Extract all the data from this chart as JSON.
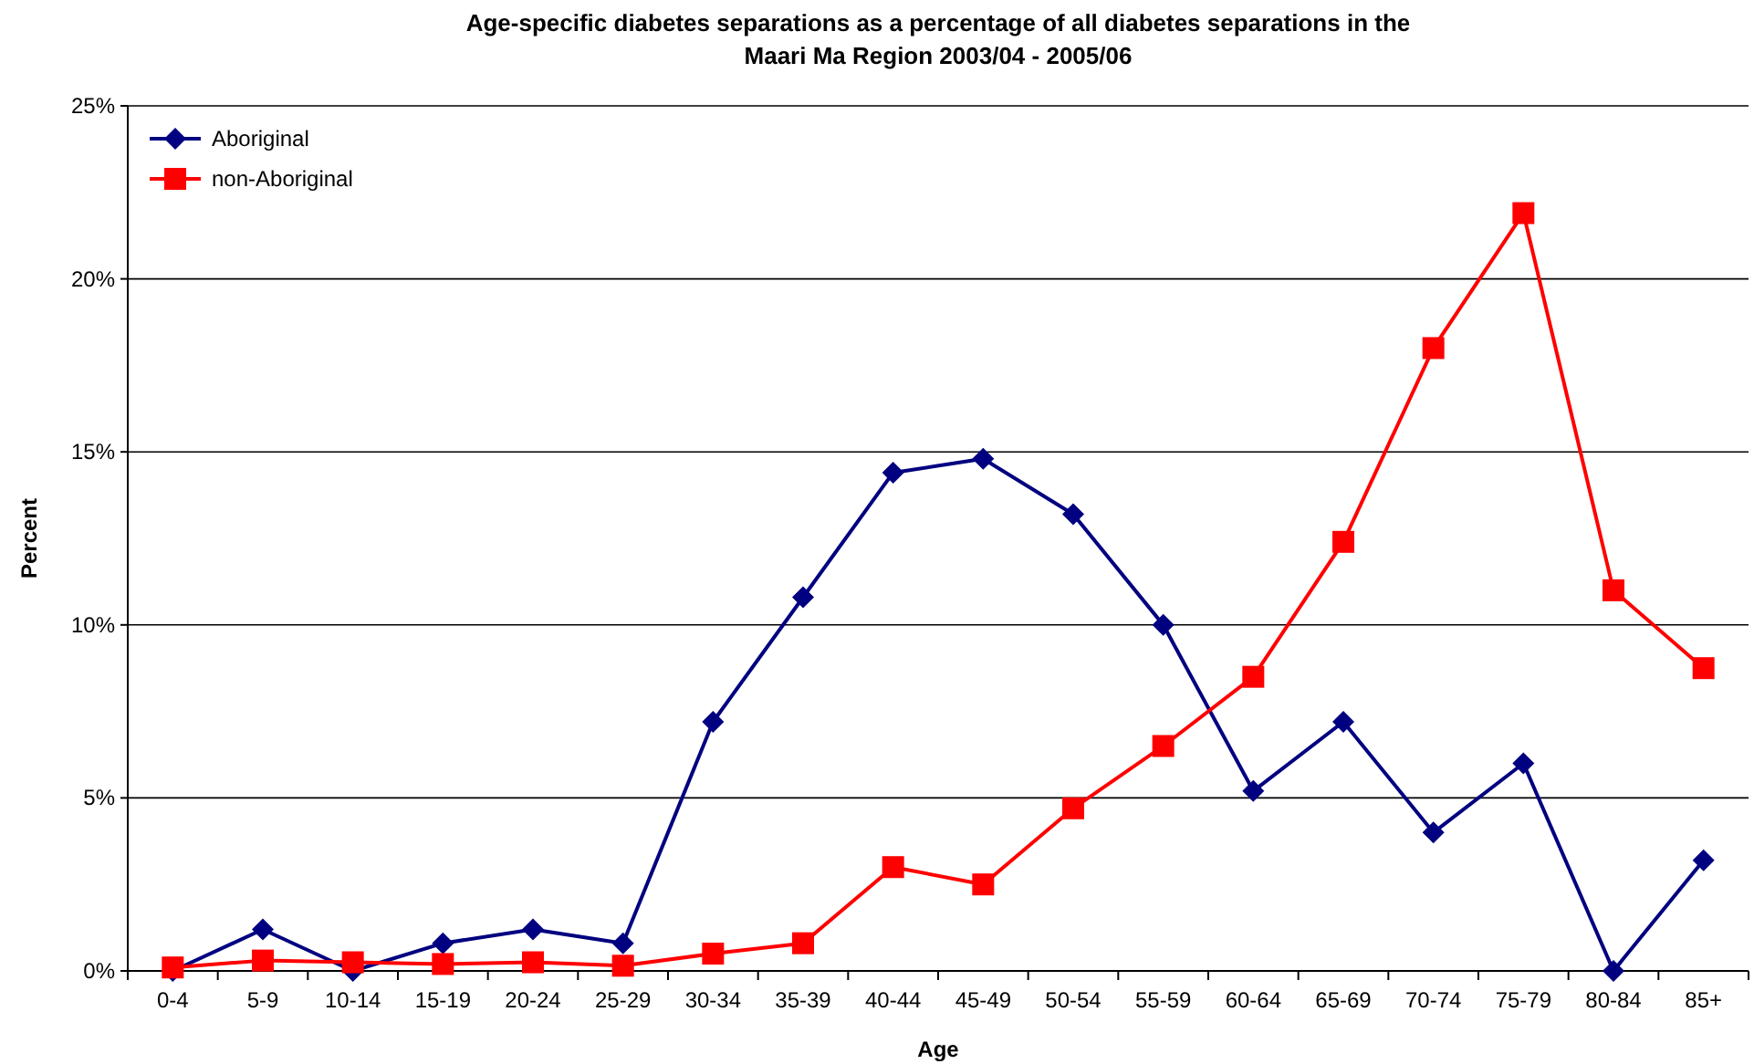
{
  "chart_data": {
    "type": "line",
    "title": "Age-specific diabetes separations as a percentage of all diabetes separations in the\nMaari Ma Region 2003/04 - 2005/06",
    "xlabel": "Age",
    "ylabel": "Percent",
    "categories": [
      "0-4",
      "5-9",
      "10-14",
      "15-19",
      "20-24",
      "25-29",
      "30-34",
      "35-39",
      "40-44",
      "45-49",
      "50-54",
      "55-59",
      "60-64",
      "65-69",
      "70-74",
      "75-79",
      "80-84",
      "85+"
    ],
    "series": [
      {
        "name": "Aboriginal",
        "color": "#000080",
        "marker": "diamond",
        "values": [
          0,
          1.2,
          0,
          0.8,
          1.2,
          0.8,
          7.2,
          10.8,
          14.4,
          14.8,
          13.2,
          10.0,
          5.2,
          7.2,
          4.0,
          6.0,
          0,
          3.2
        ]
      },
      {
        "name": "non-Aboriginal",
        "color": "#ff0000",
        "marker": "square",
        "values": [
          0.1,
          0.3,
          0.25,
          0.2,
          0.25,
          0.15,
          0.5,
          0.8,
          3.0,
          2.5,
          4.7,
          6.5,
          8.5,
          12.4,
          18.0,
          21.9,
          11.0,
          8.75
        ]
      }
    ],
    "ylim": [
      0,
      25
    ],
    "yticks": [
      {
        "value": 0,
        "label": "0%"
      },
      {
        "value": 5,
        "label": "5%"
      },
      {
        "value": 10,
        "label": "10%"
      },
      {
        "value": 15,
        "label": "15%"
      },
      {
        "value": 20,
        "label": "20%"
      },
      {
        "value": 25,
        "label": "25%"
      }
    ],
    "grid": "y",
    "legend": "top left",
    "line_style": "solid"
  }
}
